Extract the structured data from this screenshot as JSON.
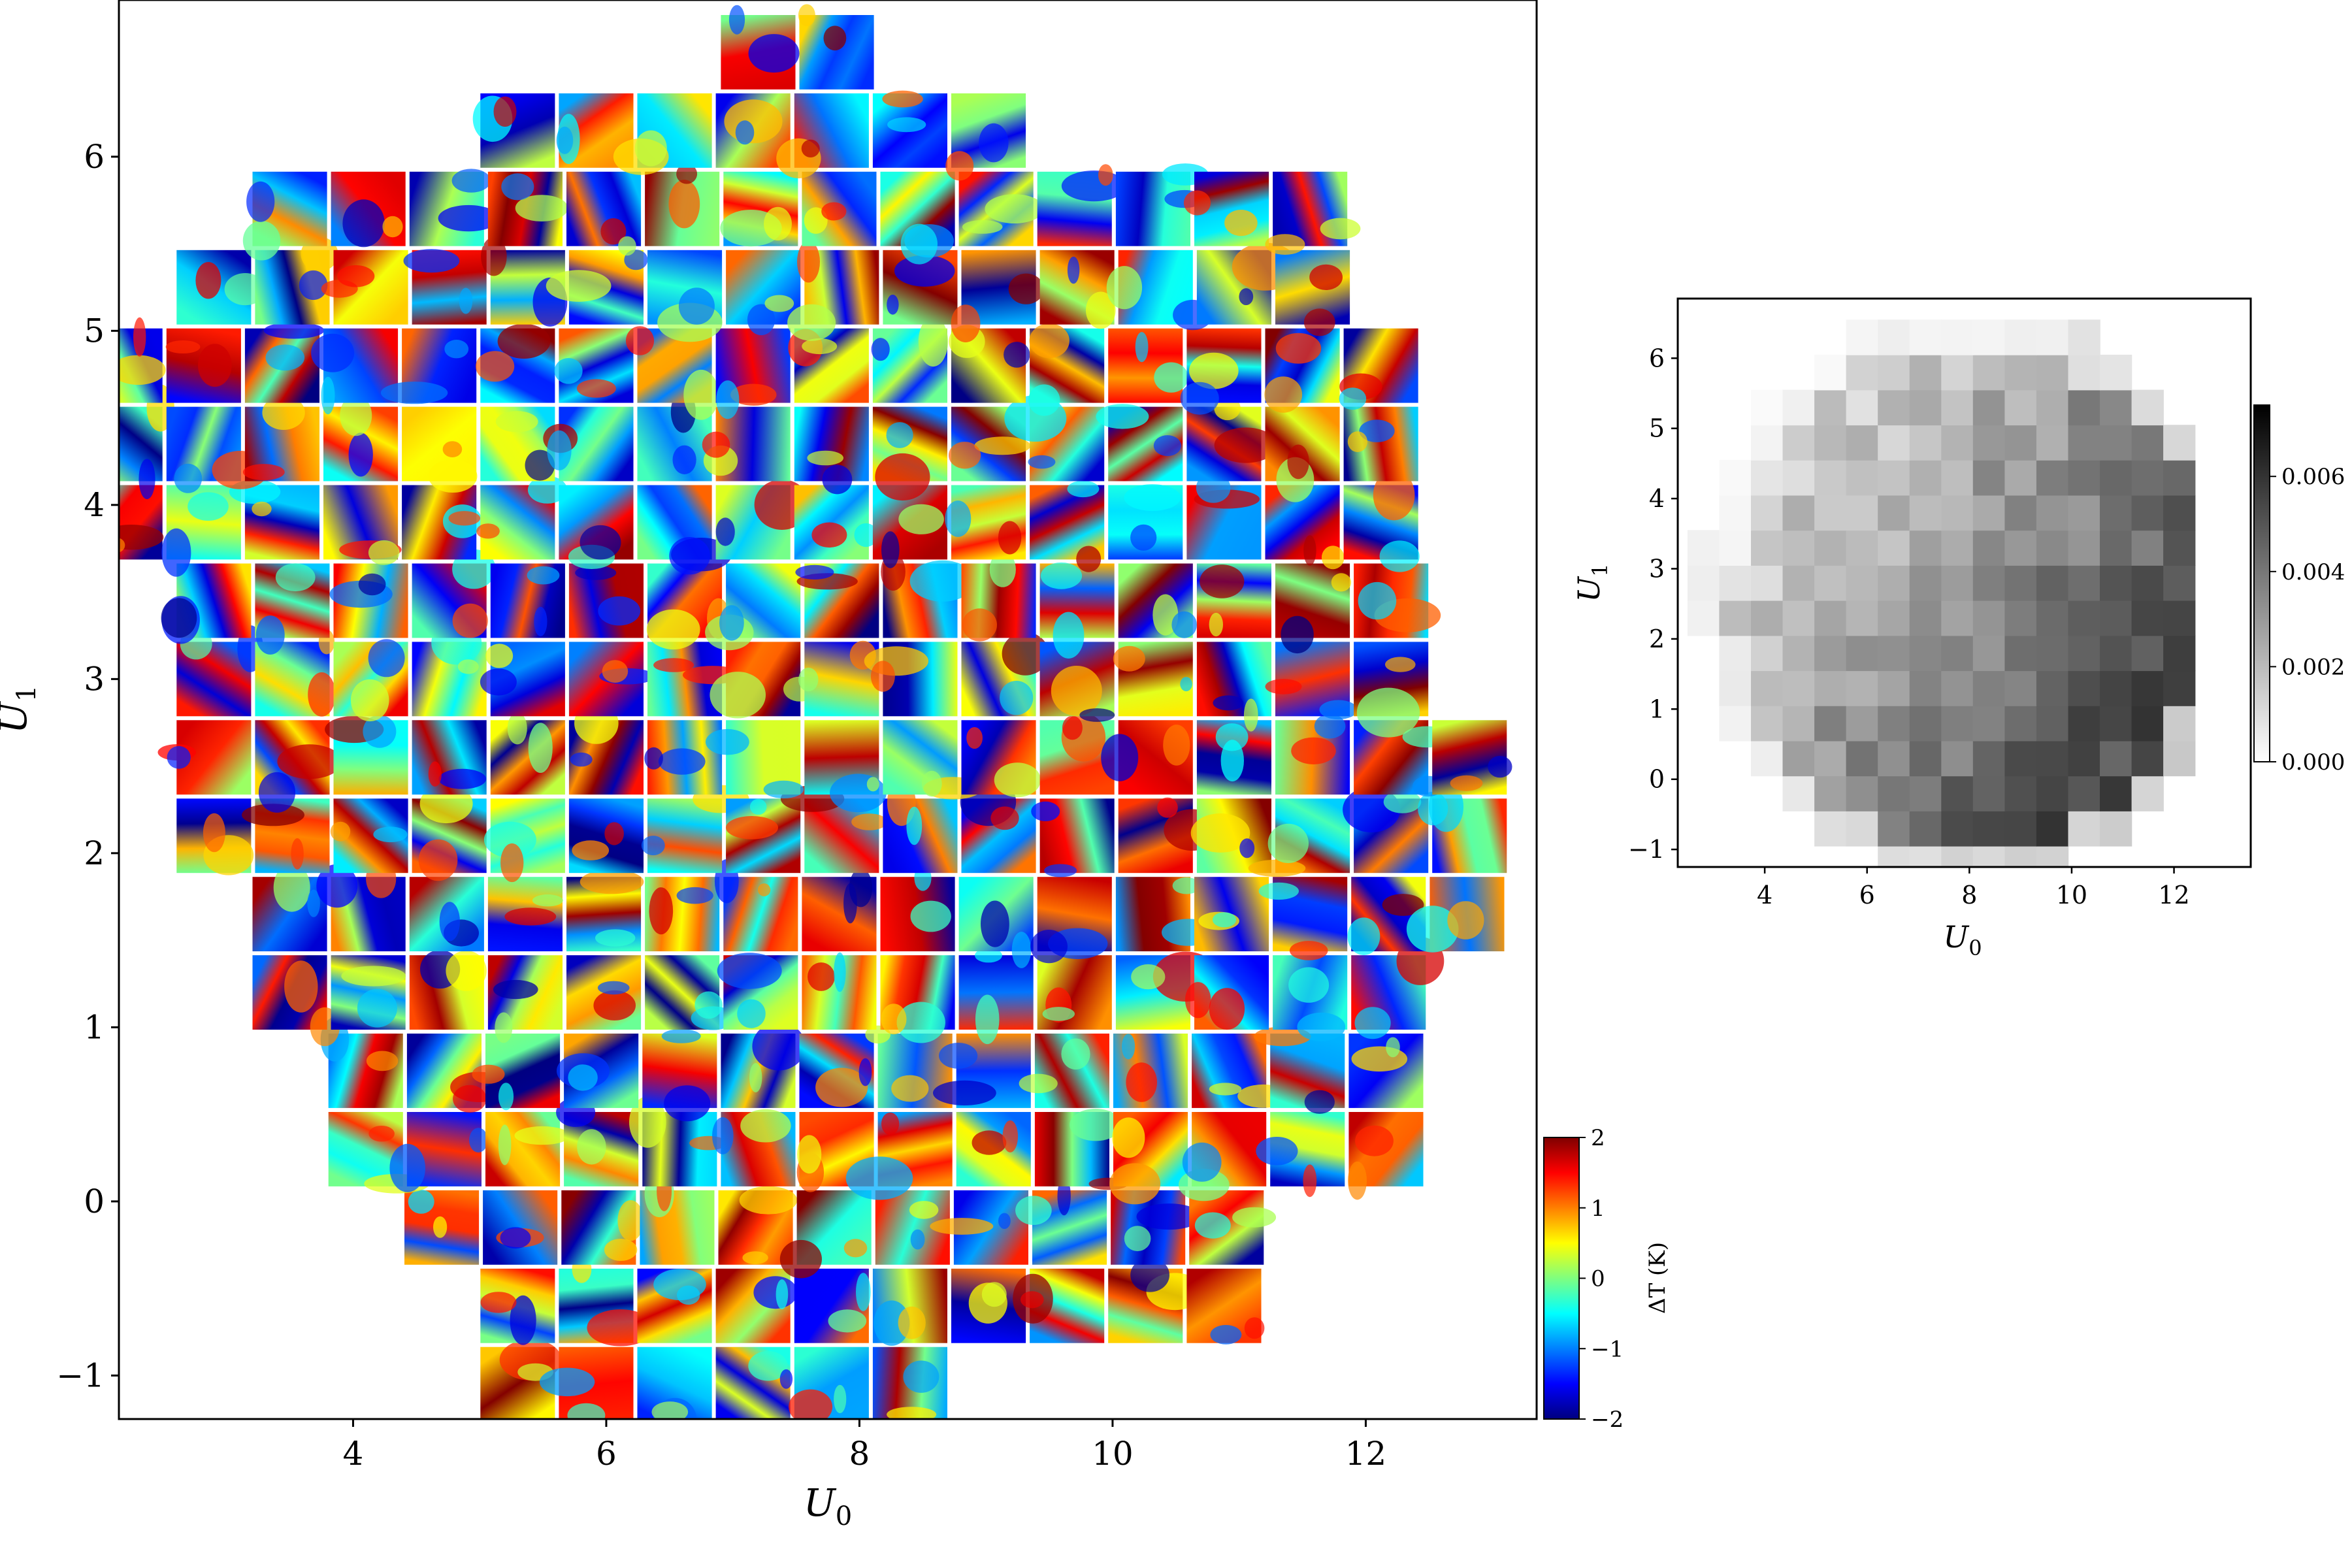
{
  "chart_data": [
    {
      "type": "heatmap",
      "description_role": "grid of image patches",
      "xlabel": "U",
      "xlabel_sub": "0",
      "ylabel": "U",
      "ylabel_sub": "1",
      "xlim": [
        2.15,
        13.35
      ],
      "ylim": [
        -1.25,
        6.9
      ],
      "xticks": [
        4,
        6,
        8,
        10,
        12
      ],
      "xtick_labels": [
        "4",
        "6",
        "8",
        "10",
        "12"
      ],
      "yticks": [
        -1,
        0,
        1,
        2,
        3,
        4,
        5,
        6
      ],
      "ytick_labels": [
        "−1",
        "0",
        "1",
        "2",
        "3",
        "4",
        "5",
        "6"
      ],
      "grid": false,
      "cell_width_x": 0.62,
      "cell_width_y": 0.45,
      "cell_step_x": 0.62,
      "cell_step_y": 0.45,
      "row_y_centers": [
        -1.05,
        -0.6,
        -0.15,
        0.3,
        0.75,
        1.2,
        1.65,
        2.1,
        2.55,
        3.0,
        3.45,
        3.9,
        4.35,
        4.8,
        5.25,
        5.7,
        6.15,
        6.6
      ],
      "row_x_ranges": [
        [
          5.3,
          8.4
        ],
        [
          5.3,
          11.4
        ],
        [
          4.7,
          11.4
        ],
        [
          4.1,
          12.7
        ],
        [
          4.1,
          12.7
        ],
        [
          3.5,
          12.7
        ],
        [
          3.5,
          13.3
        ],
        [
          2.9,
          13.3
        ],
        [
          2.9,
          13.3
        ],
        [
          2.9,
          12.7
        ],
        [
          2.9,
          12.7
        ],
        [
          2.2,
          12.7
        ],
        [
          2.2,
          12.7
        ],
        [
          2.2,
          12.7
        ],
        [
          2.9,
          12.1
        ],
        [
          3.5,
          12.1
        ],
        [
          5.3,
          9.6
        ],
        [
          7.2,
          8.4
        ]
      ]
    },
    {
      "type": "heatmap",
      "xlabel": "U",
      "xlabel_sub": "0",
      "ylabel": "U",
      "ylabel_sub": "1",
      "xlim": [
        2.3,
        13.5
      ],
      "ylim": [
        -1.25,
        6.85
      ],
      "xticks": [
        4,
        6,
        8,
        10,
        12
      ],
      "xtick_labels": [
        "4",
        "6",
        "8",
        "10",
        "12"
      ],
      "yticks": [
        -1,
        0,
        1,
        2,
        3,
        4,
        5,
        6
      ],
      "ytick_labels": [
        "−1",
        "0",
        "1",
        "2",
        "3",
        "4",
        "5",
        "6"
      ],
      "colormap": "gray_r",
      "grid": false,
      "cols": 16,
      "rows": 16,
      "x0": 2.8,
      "dx": 0.62,
      "y0": -1.2,
      "dy": 0.5
    }
  ],
  "colorbars": [
    {
      "label": "ΔT (K)",
      "ticks": [
        -2,
        -1,
        0,
        1,
        2
      ],
      "tick_labels": [
        "−2",
        "−1",
        "0",
        "1",
        "2"
      ],
      "range": [
        -2,
        2
      ],
      "colormap": "jet"
    },
    {
      "ticks": [
        0.0,
        0.002,
        0.004,
        0.006
      ],
      "tick_labels": [
        "0.000",
        "0.002",
        "0.004",
        "0.006"
      ],
      "range": [
        0.0,
        0.0075
      ],
      "colormap": "gray_r"
    }
  ],
  "colors": {
    "jet_stops": [
      "#00007f",
      "#0000ff",
      "#007fff",
      "#00ffff",
      "#7fff7f",
      "#ffff00",
      "#ff7f00",
      "#ff0000",
      "#7f0000"
    ],
    "axis": "#000000",
    "background": "#ffffff"
  }
}
